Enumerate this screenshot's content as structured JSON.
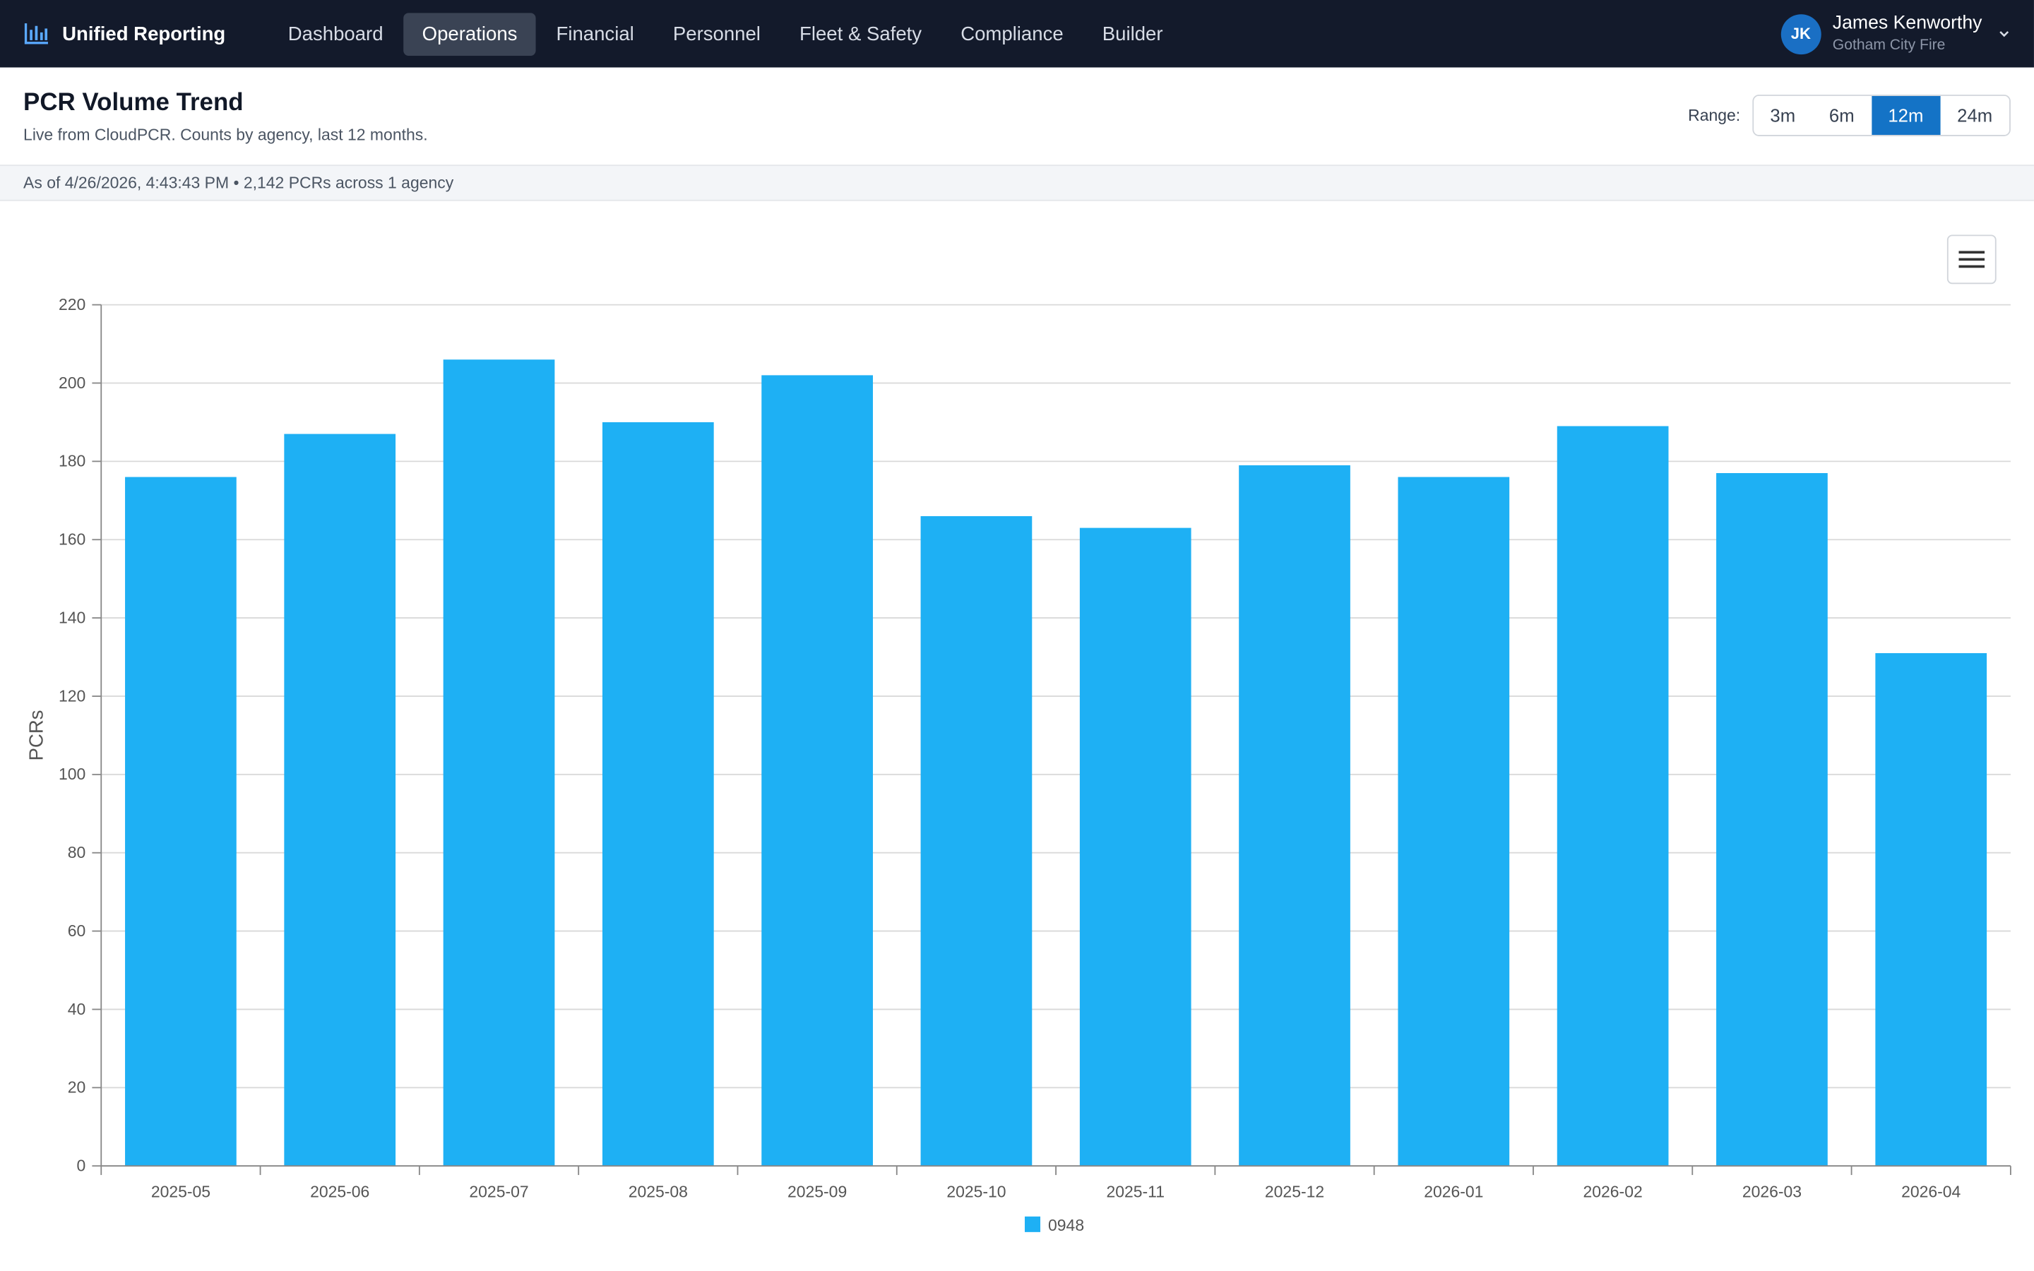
{
  "app": {
    "name": "Unified Reporting",
    "brand_icon": "bar-chart-icon"
  },
  "nav": {
    "items": [
      {
        "label": "Dashboard",
        "active": false
      },
      {
        "label": "Operations",
        "active": true
      },
      {
        "label": "Financial",
        "active": false
      },
      {
        "label": "Personnel",
        "active": false
      },
      {
        "label": "Fleet & Safety",
        "active": false
      },
      {
        "label": "Compliance",
        "active": false
      },
      {
        "label": "Builder",
        "active": false
      }
    ]
  },
  "user": {
    "initials": "JK",
    "name": "James Kenworthy",
    "org": "Gotham City Fire"
  },
  "page": {
    "title": "PCR Volume Trend",
    "subtitle": "Live from CloudPCR. Counts by agency, last 12 months."
  },
  "range": {
    "label": "Range:",
    "options": [
      "3m",
      "6m",
      "12m",
      "24m"
    ],
    "selected": "12m"
  },
  "status": {
    "text": "As of 4/26/2026, 4:43:43 PM • 2,142 PCRs across 1 agency"
  },
  "colors": {
    "bar": "#1eb0f4",
    "nav_bg": "#131a2b",
    "accent": "#1473c6"
  },
  "chart_data": {
    "type": "bar",
    "title": "",
    "xlabel": "",
    "ylabel": "PCRs",
    "ylim": [
      0,
      220
    ],
    "yticks": [
      0,
      20,
      40,
      60,
      80,
      100,
      120,
      140,
      160,
      180,
      200,
      220
    ],
    "grid": true,
    "legend_position": "bottom-center",
    "categories": [
      "2025-05",
      "2025-06",
      "2025-07",
      "2025-08",
      "2025-09",
      "2025-10",
      "2025-11",
      "2025-12",
      "2026-01",
      "2026-02",
      "2026-03",
      "2026-04"
    ],
    "series": [
      {
        "name": "0948",
        "color": "#1eb0f4",
        "values": [
          176,
          187,
          206,
          190,
          202,
          166,
          163,
          179,
          176,
          189,
          177,
          131
        ]
      }
    ]
  }
}
